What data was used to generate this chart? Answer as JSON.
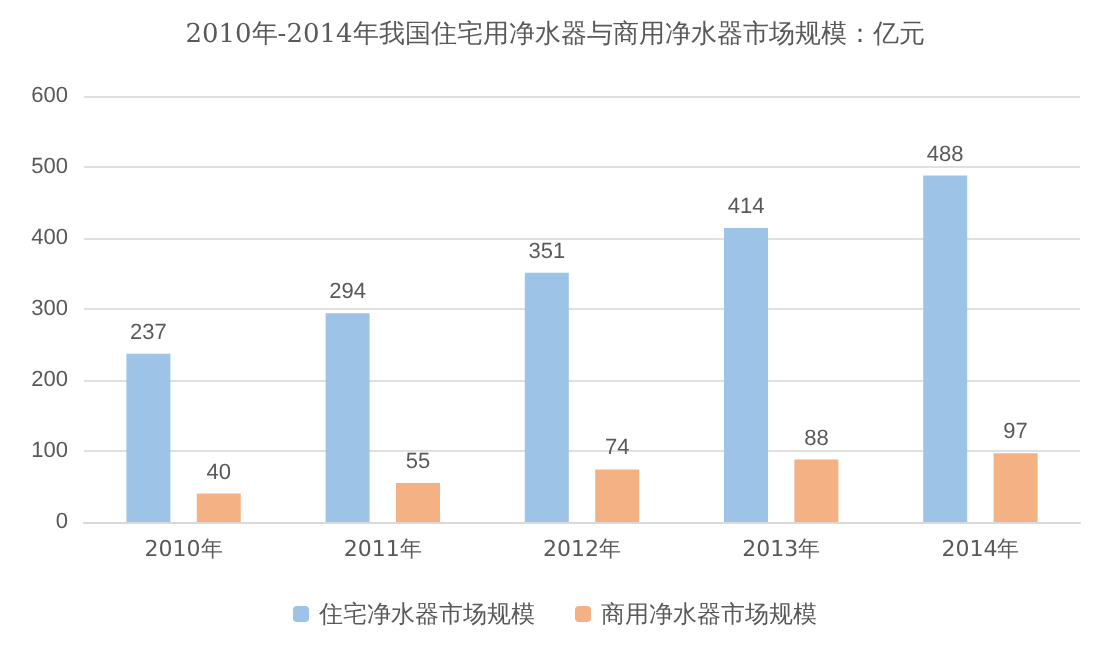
{
  "chart_data": {
    "type": "bar",
    "title": "2010年-2014年我国住宅用净水器与商用净水器市场规模：亿元",
    "categories": [
      "2010年",
      "2011年",
      "2012年",
      "2013年",
      "2014年"
    ],
    "series": [
      {
        "name": "住宅净水器市场规模",
        "color": "#9dc3e6",
        "values": [
          237,
          294,
          351,
          414,
          488
        ]
      },
      {
        "name": "商用净水器市场规模",
        "color": "#f4b183",
        "values": [
          40,
          55,
          74,
          88,
          97
        ]
      }
    ],
    "ylim": [
      0,
      600
    ],
    "yticks": [
      0,
      100,
      200,
      300,
      400,
      500,
      600
    ],
    "grid": "y",
    "legend": "bottom",
    "data_labels": true
  }
}
